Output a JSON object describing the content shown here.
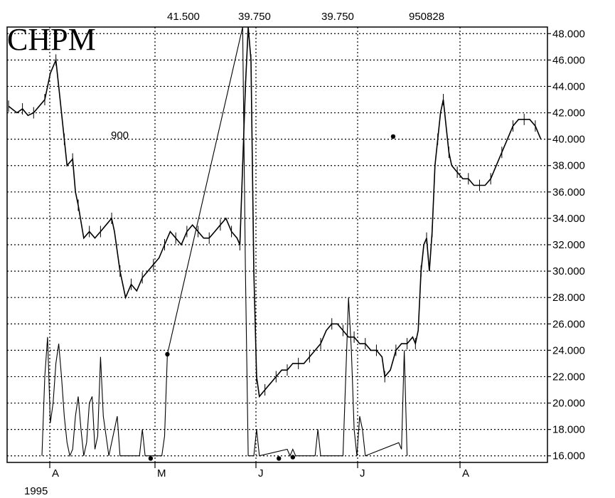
{
  "chart_data": {
    "type": "line",
    "title": "CHPM",
    "top_labels": [
      "41.500",
      "39.750",
      "39.750",
      "950828"
    ],
    "annotation": "900",
    "year_label": "1995",
    "x_ticks": [
      "A",
      "M",
      "J",
      "J",
      "A"
    ],
    "y_ticks": [
      "48.000",
      "46.000",
      "44.000",
      "42.000",
      "40.000",
      "38.000",
      "36.000",
      "34.000",
      "32.000",
      "30.000",
      "28.000",
      "26.000",
      "24.000",
      "22.000",
      "20.000",
      "18.000",
      "16.000"
    ],
    "ylim": [
      15.5,
      48.5
    ],
    "grid": true,
    "series": [
      {
        "values": [
          [
            0,
            42.5
          ],
          [
            3,
            42
          ],
          [
            5,
            42.3
          ],
          [
            7,
            41.8
          ],
          [
            9,
            42
          ],
          [
            11,
            42.5
          ],
          [
            13,
            43
          ],
          [
            15,
            45
          ],
          [
            17,
            46
          ],
          [
            18,
            44
          ],
          [
            20,
            40
          ],
          [
            21,
            38
          ],
          [
            23,
            38.5
          ],
          [
            24,
            36
          ],
          [
            25,
            35
          ],
          [
            27,
            32.5
          ],
          [
            29,
            33
          ],
          [
            31,
            32.5
          ],
          [
            33,
            33
          ],
          [
            35,
            33.5
          ],
          [
            37,
            34
          ],
          [
            38,
            33
          ],
          [
            40,
            30
          ],
          [
            42,
            28
          ],
          [
            44,
            29
          ],
          [
            46,
            28.5
          ],
          [
            48,
            29.5
          ],
          [
            50,
            30
          ],
          [
            52,
            30.5
          ],
          [
            54,
            31
          ],
          [
            56,
            32
          ],
          [
            58,
            33
          ],
          [
            60,
            32.5
          ],
          [
            62,
            32
          ],
          [
            64,
            33
          ],
          [
            66,
            33.5
          ],
          [
            68,
            33
          ],
          [
            70,
            32.5
          ],
          [
            72,
            32.5
          ],
          [
            74,
            33
          ],
          [
            76,
            33.5
          ],
          [
            78,
            34
          ],
          [
            80,
            33
          ],
          [
            82,
            32.5
          ],
          [
            83,
            32
          ],
          [
            84,
            38
          ],
          [
            85,
            44
          ],
          [
            86,
            48.5
          ],
          [
            87,
            46
          ],
          [
            88,
            30
          ],
          [
            89,
            22
          ],
          [
            90,
            20.5
          ],
          [
            92,
            21
          ],
          [
            94,
            21.5
          ],
          [
            96,
            22
          ],
          [
            98,
            22.5
          ],
          [
            100,
            22.5
          ],
          [
            102,
            23
          ],
          [
            104,
            23
          ],
          [
            106,
            23
          ],
          [
            108,
            23.5
          ],
          [
            110,
            24
          ],
          [
            112,
            24.5
          ],
          [
            114,
            25.5
          ],
          [
            116,
            26
          ],
          [
            118,
            26
          ],
          [
            120,
            25.5
          ],
          [
            122,
            25
          ],
          [
            124,
            25
          ],
          [
            126,
            24.5
          ],
          [
            128,
            24.5
          ],
          [
            130,
            24
          ],
          [
            132,
            24
          ],
          [
            134,
            23.5
          ],
          [
            135,
            22
          ],
          [
            137,
            22.5
          ],
          [
            139,
            24
          ],
          [
            141,
            24.5
          ],
          [
            143,
            24.5
          ],
          [
            145,
            25
          ],
          [
            146,
            24.5
          ],
          [
            147,
            25.5
          ],
          [
            148,
            30
          ],
          [
            149,
            32
          ],
          [
            150,
            32.5
          ],
          [
            151,
            30
          ],
          [
            152,
            33
          ],
          [
            153,
            38
          ],
          [
            154,
            40
          ],
          [
            155,
            42
          ],
          [
            156,
            43
          ],
          [
            157,
            41
          ],
          [
            158,
            39
          ],
          [
            159,
            38
          ],
          [
            161,
            37.5
          ],
          [
            163,
            37
          ],
          [
            165,
            37
          ],
          [
            167,
            36.5
          ],
          [
            169,
            36.5
          ],
          [
            171,
            36.5
          ],
          [
            173,
            37
          ],
          [
            175,
            38
          ],
          [
            177,
            39
          ],
          [
            179,
            40
          ],
          [
            181,
            41
          ],
          [
            183,
            41.5
          ],
          [
            185,
            41.5
          ],
          [
            187,
            41.5
          ],
          [
            189,
            41
          ],
          [
            191,
            40
          ]
        ]
      },
      {
        "values": [
          [
            12,
            16
          ],
          [
            13,
            22
          ],
          [
            14,
            25
          ],
          [
            15,
            18.5
          ],
          [
            16,
            20
          ],
          [
            17,
            23
          ],
          [
            18,
            24.5
          ],
          [
            19,
            22
          ],
          [
            20,
            19
          ],
          [
            21,
            17
          ],
          [
            22,
            16
          ],
          [
            23,
            16.5
          ],
          [
            24,
            19
          ],
          [
            25,
            20.5
          ],
          [
            26,
            18
          ],
          [
            27,
            16
          ],
          [
            28,
            17
          ],
          [
            29,
            20
          ],
          [
            30,
            20.5
          ],
          [
            31,
            16.5
          ],
          [
            32,
            17.5
          ],
          [
            33,
            23.5
          ],
          [
            34,
            19
          ],
          [
            36,
            16
          ],
          [
            37,
            17
          ],
          [
            39,
            19
          ],
          [
            40,
            16
          ],
          [
            47,
            16
          ],
          [
            48,
            18
          ],
          [
            49,
            16
          ],
          [
            55,
            16
          ],
          [
            56,
            17.5
          ],
          [
            57,
            23.7
          ],
          [
            84,
            48.5
          ],
          [
            85,
            30
          ],
          [
            86,
            16
          ],
          [
            88,
            16
          ],
          [
            89,
            18
          ],
          [
            90,
            16
          ],
          [
            100,
            16.5
          ],
          [
            101,
            16
          ],
          [
            102,
            16.5
          ],
          [
            103,
            16
          ],
          [
            110,
            16
          ],
          [
            111,
            18
          ],
          [
            112,
            16
          ],
          [
            120,
            16
          ],
          [
            121,
            22
          ],
          [
            122,
            28
          ],
          [
            123,
            24
          ],
          [
            124,
            18
          ],
          [
            125,
            16
          ],
          [
            126,
            19
          ],
          [
            127,
            18
          ],
          [
            128,
            16
          ],
          [
            140,
            17
          ],
          [
            141,
            16.5
          ],
          [
            142,
            24
          ],
          [
            143,
            16
          ]
        ]
      }
    ],
    "markers": [
      [
        51,
        15.8
      ],
      [
        97,
        15.8
      ],
      [
        102,
        15.9
      ],
      [
        57,
        23.7
      ],
      [
        138,
        40.2
      ]
    ]
  }
}
